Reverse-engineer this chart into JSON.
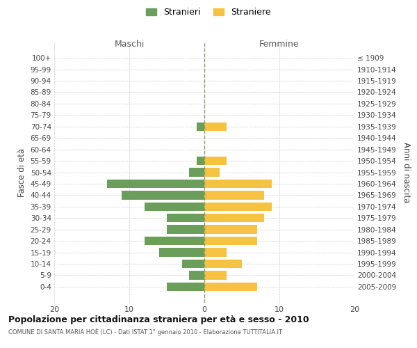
{
  "age_groups": [
    "100+",
    "95-99",
    "90-94",
    "85-89",
    "80-84",
    "75-79",
    "70-74",
    "65-69",
    "60-64",
    "55-59",
    "50-54",
    "45-49",
    "40-44",
    "35-39",
    "30-34",
    "25-29",
    "20-24",
    "15-19",
    "10-14",
    "5-9",
    "0-4"
  ],
  "birth_years": [
    "≤ 1909",
    "1910-1914",
    "1915-1919",
    "1920-1924",
    "1925-1929",
    "1930-1934",
    "1935-1939",
    "1940-1944",
    "1945-1949",
    "1950-1954",
    "1955-1959",
    "1960-1964",
    "1965-1969",
    "1970-1974",
    "1975-1979",
    "1980-1984",
    "1985-1989",
    "1990-1994",
    "1995-1999",
    "2000-2004",
    "2005-2009"
  ],
  "males": [
    0,
    0,
    0,
    0,
    0,
    0,
    1,
    0,
    0,
    1,
    2,
    13,
    11,
    8,
    5,
    5,
    8,
    6,
    3,
    2,
    5
  ],
  "females": [
    0,
    0,
    0,
    0,
    0,
    0,
    3,
    0,
    0,
    3,
    2,
    9,
    8,
    9,
    8,
    7,
    7,
    3,
    5,
    3,
    7
  ],
  "male_color": "#6a9e5a",
  "female_color": "#f5c242",
  "background_color": "#ffffff",
  "grid_color": "#cccccc",
  "title": "Popolazione per cittadinanza straniera per età e sesso - 2010",
  "subtitle": "COMUNE DI SANTA MARIA HOÈ (LC) - Dati ISTAT 1° gennaio 2010 - Elaborazione TUTTITALIA.IT",
  "xlabel_left": "Maschi",
  "xlabel_right": "Femmine",
  "ylabel_left": "Fasce di età",
  "ylabel_right": "Anni di nascita",
  "legend_male": "Stranieri",
  "legend_female": "Straniere",
  "xlim": 20,
  "bar_height": 0.75
}
